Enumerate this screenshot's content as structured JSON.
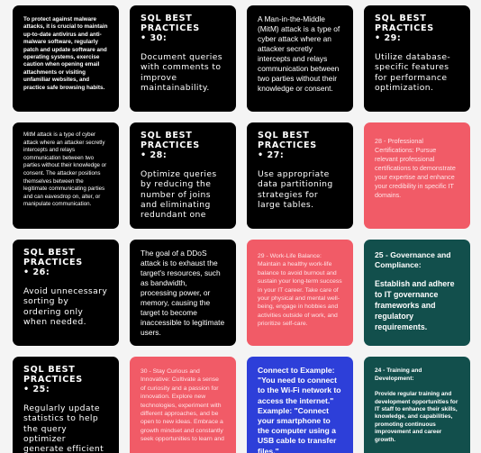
{
  "cards": {
    "malware": "To protect against malware attacks, it is crucial to maintain up-to-date antivirus and anti-malware software, regularly patch and update software and operating systems, exercise caution when opening email attachments or visiting unfamiliar websites, and practice safe browsing habits.",
    "sql30": {
      "title": "SQL BEST PRACTICES",
      "num": "• 30:",
      "body": "Document queries with comments to improve maintainability."
    },
    "mitm_definition": "A Man-in-the-Middle (MitM) attack is a type of cyber attack where an attacker secretly intercepts and relays communication between two parties without their knowledge or consent.",
    "sql29": {
      "title": "SQL BEST PRACTICES",
      "num": "• 29:",
      "body": "Utilize database-specific features for performance optimization."
    },
    "mitm_short": "MitM attack is a type of cyber attack where an attacker secretly intercepts and relays communication between two parties without their knowledge or consent. The attacker positions themselves between the legitimate communicating parties and can eavesdrop on, alter, or manipulate communication.",
    "sql28": {
      "title": "SQL BEST PRACTICES",
      "num": "• 28:",
      "body": "Optimize queries by reducing the number of joins and eliminating redundant one"
    },
    "sql27": {
      "title": "SQL BEST PRACTICES",
      "num": "• 27:",
      "body": "Use appropriate data partitioning strategies for large tables."
    },
    "certifications": "28 - Professional Certifications: Pursue relevant professional certifications to demonstrate your expertise and enhance your credibility in specific IT domains.",
    "sql26": {
      "title": "SQL BEST PRACTICES",
      "num": "• 26:",
      "body": "Avoid unnecessary sorting by ordering only when needed."
    },
    "ddos": "The goal of a DDoS attack is to exhaust the target's resources, such as bandwidth, processing power, or memory, causing the target to become inaccessible to legitimate users.",
    "worklife": "29 - Work-Life Balance: Maintain a healthy work-life balance to avoid burnout and sustain your long-term success in your IT career. Take care of your physical and mental well-being, engage in hobbies and activities outside of work, and prioritize self-care.",
    "governance": {
      "title": "25 - Governance and Compliance:",
      "body": "Establish and adhere to IT governance frameworks and regulatory requirements."
    },
    "sql25": {
      "title": "SQL BEST PRACTICES",
      "num": "• 25:",
      "body": "Regularly update statistics to help the query optimizer generate efficient execution plans."
    },
    "curious": "30 - Stay Curious and Innovative: Cultivate a sense of curiosity and a passion for innovation. Explore new technologies, experiment with different approaches, and be open to new ideas. Embrace a growth mindset and constantly seek opportunities to learn and",
    "usb": "Connect to Example: \"You need to connect to the Wi-Fi network to access the internet.\" Example: \"Connect your smartphone to the computer using a USB cable to transfer files.\"",
    "training": {
      "title": "24 - Training and Development:",
      "body": "Provide regular training and development opportunities for IT staff to enhance their skills, knowledge, and capabilities, promoting continuous improvement and career growth."
    }
  }
}
